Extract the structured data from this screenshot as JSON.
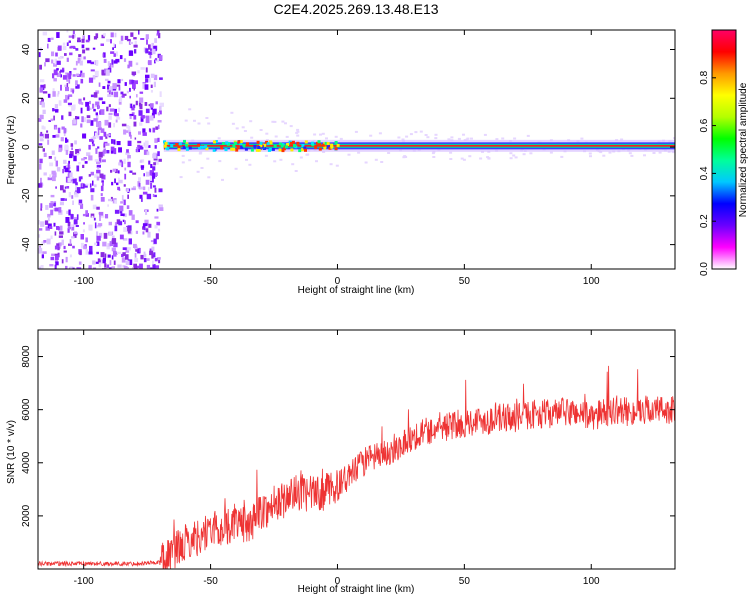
{
  "title": "C2E4.2025.269.13.48.E13",
  "chart_data": [
    {
      "type": "heatmap",
      "xlabel": "Height of straight line (km)",
      "ylabel": "Frequency (Hz)",
      "xlim": [
        -118,
        133
      ],
      "ylim": [
        -50,
        48
      ],
      "xticks": [
        -100,
        -50,
        0,
        50,
        100
      ],
      "yticks": [
        -40,
        -20,
        0,
        20,
        40
      ],
      "noise_region_x": [
        -118,
        -70
      ],
      "signal_line_hz": 0.5,
      "colorbar": {
        "label": "Normalized spectral amplitude",
        "range": [
          0,
          1
        ],
        "ticks": [
          0.0,
          0.2,
          0.4,
          0.6,
          0.8
        ],
        "colors": [
          "#ffffff",
          "#ff00ff",
          "#6a00ff",
          "#0000ff",
          "#00c8ff",
          "#00ff9a",
          "#00ff00",
          "#b4ff00",
          "#ffff00",
          "#ff9900",
          "#ff0000",
          "#ff0066"
        ]
      },
      "grid": false
    },
    {
      "type": "line",
      "xlabel": "Height of straight line (km)",
      "ylabel": "SNR (10 * v/v)",
      "xlim": [
        -118,
        133
      ],
      "ylim": [
        0,
        9000
      ],
      "xticks": [
        -100,
        -50,
        0,
        50,
        100
      ],
      "yticks": [
        2000,
        4000,
        6000,
        8000
      ],
      "line_color": "#ee3333",
      "series": [
        {
          "x": [
            -118,
            -100,
            -80,
            -70,
            -65,
            -60,
            -55,
            -50,
            -45,
            -40,
            -35,
            -30,
            -25,
            -20,
            -15,
            -10,
            -5,
            0,
            5,
            10,
            15,
            20,
            25,
            30,
            35,
            40,
            45,
            50,
            55,
            60,
            65,
            70,
            75,
            80,
            85,
            90,
            95,
            100,
            105,
            110,
            115,
            120,
            125,
            133
          ],
          "y": [
            200,
            200,
            200,
            250,
            600,
            1000,
            1200,
            1500,
            1500,
            1800,
            1600,
            2200,
            2300,
            2700,
            2900,
            2800,
            2900,
            3100,
            3500,
            4000,
            4200,
            4400,
            4700,
            5000,
            5200,
            5300,
            5400,
            5500,
            5600,
            5600,
            5700,
            5700,
            5800,
            5850,
            5850,
            5900,
            5900,
            5700,
            5900,
            6000,
            5900,
            6000,
            6000,
            6000
          ]
        }
      ],
      "grid": false
    }
  ]
}
